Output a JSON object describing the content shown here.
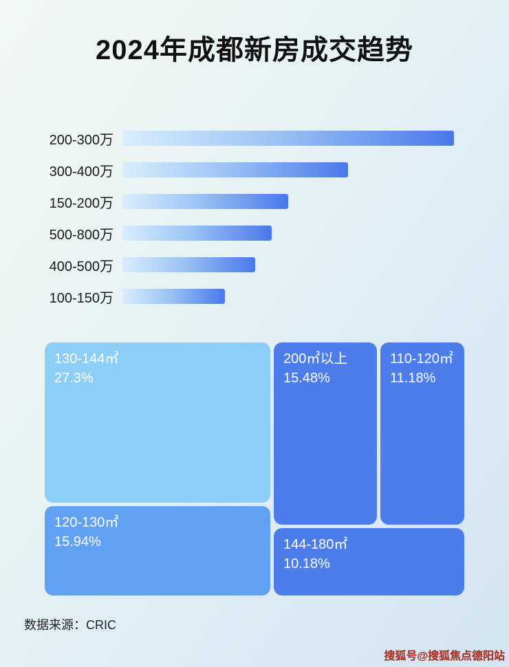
{
  "page": {
    "title": "2024年成都新房成交趋势",
    "source_label": "数据来源：CRIC",
    "watermark": "搜狐号@搜狐焦点德阳站"
  },
  "colors": {
    "bar_gradient_start": "#d9edfc",
    "bar_gradient_end": "#4a78ea",
    "title_text": "#111111",
    "treemap_text": "#ffffff"
  },
  "chart_data": [
    {
      "type": "bar",
      "orientation": "horizontal",
      "title": "2024年成都新房成交趋势",
      "categories": [
        "200-300万",
        "300-400万",
        "150-200万",
        "500-800万",
        "400-500万",
        "100-150万"
      ],
      "values": [
        100,
        68,
        50,
        45,
        40,
        31
      ],
      "value_unit": "relative width, longest bar = 100 (no numeric labels shown in image)",
      "xlabel": "",
      "ylabel": "",
      "grid": false,
      "legend": false
    },
    {
      "type": "treemap",
      "items": [
        {
          "label": "130-144㎡",
          "value": 27.3,
          "display": "27.3%",
          "color": "#8ccef5"
        },
        {
          "label": "120-130㎡",
          "value": 15.94,
          "display": "15.94%",
          "color": "#61a1f3"
        },
        {
          "label": "200㎡以上",
          "value": 15.48,
          "display": "15.48%",
          "color": "#4c7dea"
        },
        {
          "label": "110-120㎡",
          "value": 11.18,
          "display": "11.18%",
          "color": "#4c7dea"
        },
        {
          "label": "144-180㎡",
          "value": 10.18,
          "display": "10.18%",
          "color": "#4c7dea"
        }
      ]
    }
  ]
}
